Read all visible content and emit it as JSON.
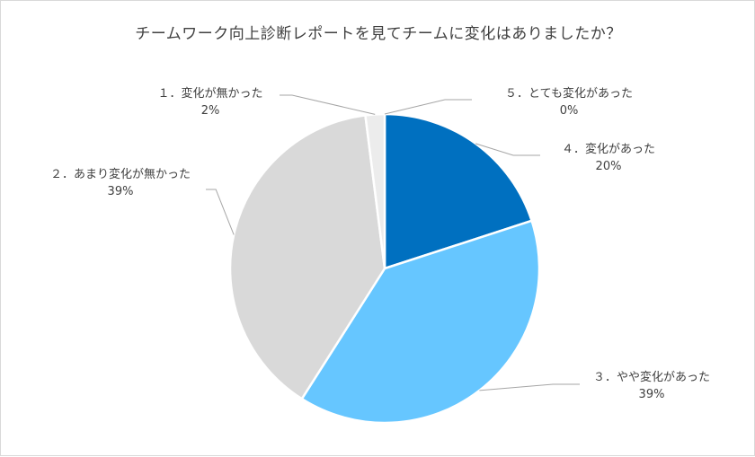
{
  "chart_data": {
    "type": "pie",
    "title": "チームワーク向上診断レポートを見てチームに変化はありましたか？",
    "start_angle_deg": 0,
    "direction": "clockwise",
    "slices": [
      {
        "label": "４．変化があった",
        "value": 20,
        "percent_label": "20%",
        "color": "#0070c0"
      },
      {
        "label": "３．やや変化があった",
        "value": 39,
        "percent_label": "39%",
        "color": "#66c6ff"
      },
      {
        "label": "２．あまり変化が無かった",
        "value": 39,
        "percent_label": "39%",
        "color": "#d9d9d9"
      },
      {
        "label": "１．変化が無かった",
        "value": 2,
        "percent_label": "2%",
        "color": "#ececec"
      },
      {
        "label": "５．とても変化があった",
        "value": 0,
        "percent_label": "0%",
        "color": "#003e6b"
      }
    ],
    "legend": "none",
    "leader_line_color": "#a6a6a6"
  }
}
